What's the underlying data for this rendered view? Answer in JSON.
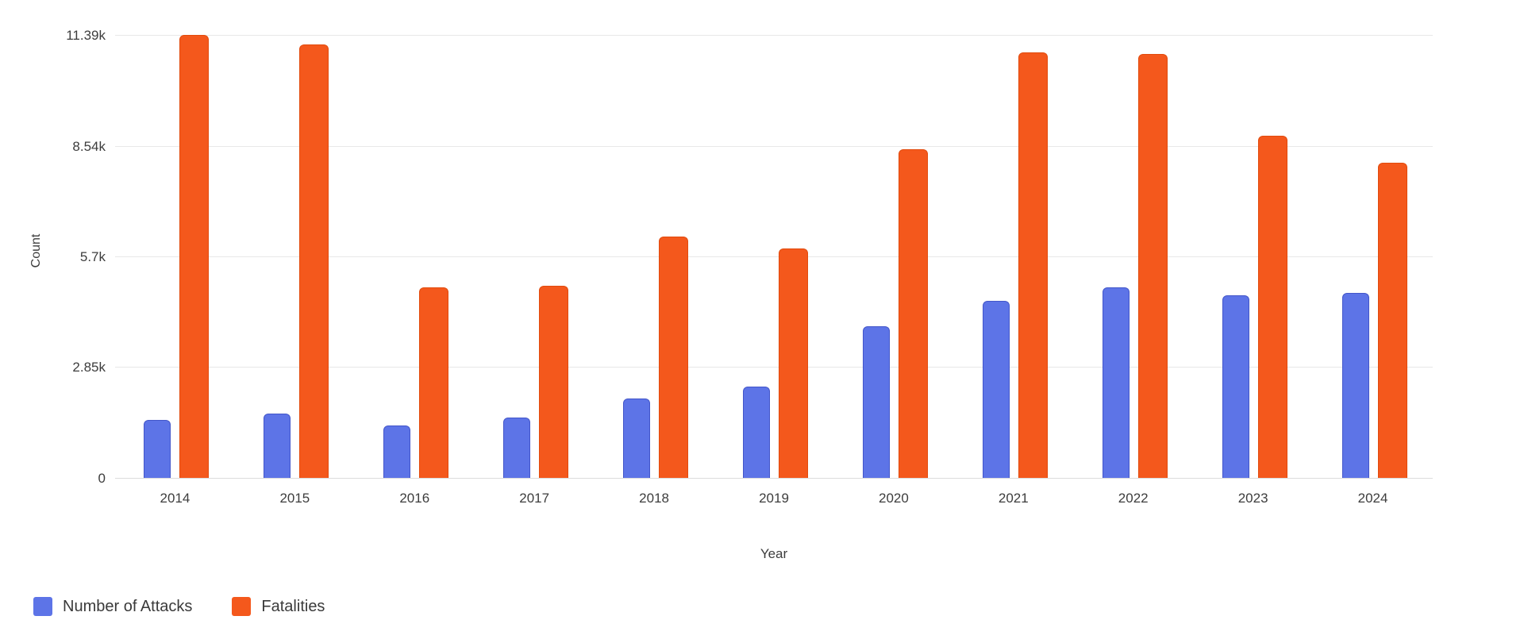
{
  "chart_data": {
    "type": "bar",
    "title": "",
    "xlabel": "Year",
    "ylabel": "Count",
    "categories": [
      "2014",
      "2015",
      "2016",
      "2017",
      "2018",
      "2019",
      "2020",
      "2021",
      "2022",
      "2023",
      "2024"
    ],
    "series": [
      {
        "name": "Number of Attacks",
        "color": "#5d74e7",
        "border_color": "#4356c9",
        "values": [
          1500,
          1650,
          1350,
          1550,
          2050,
          2350,
          3900,
          4550,
          4900,
          4700,
          4750
        ]
      },
      {
        "name": "Fatalities",
        "color": "#f4581c",
        "border_color": "#e24b0d",
        "values": [
          11390,
          11150,
          4900,
          4950,
          6200,
          5900,
          8450,
          10950,
          10900,
          8800,
          8100
        ]
      }
    ],
    "yticks": [
      {
        "label": "0",
        "value": 0
      },
      {
        "label": "2.85k",
        "value": 2850
      },
      {
        "label": "5.7k",
        "value": 5700
      },
      {
        "label": "8.54k",
        "value": 8540
      },
      {
        "label": "11.39k",
        "value": 11390
      }
    ],
    "ylim": [
      0,
      11680
    ],
    "grid": true,
    "grid_color": "#e8e8e8",
    "text_color": "#3d3d3d",
    "background_color": "#ffffff",
    "legend_position": "bottom-left"
  }
}
